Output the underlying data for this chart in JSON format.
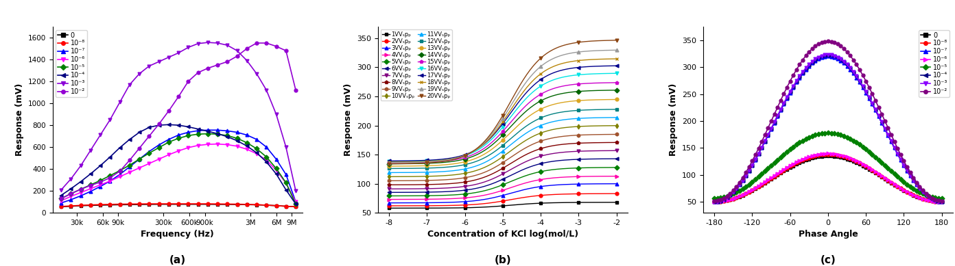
{
  "panel_a": {
    "title": "(a)",
    "xlabel": "Frequency (Hz)",
    "ylabel": "Response (mV)",
    "ylim": [
      0,
      1700
    ],
    "yticks": [
      0,
      200,
      400,
      600,
      800,
      1000,
      1200,
      1400,
      1600
    ],
    "freq_labels": [
      "30k",
      "60k",
      "90k",
      "300k",
      "600k",
      "900k",
      "3M",
      "6M",
      "9M"
    ],
    "freq_log_values": [
      4.477,
      4.778,
      4.954,
      5.477,
      5.778,
      5.954,
      6.477,
      6.778,
      6.954
    ],
    "series": [
      {
        "label": "0",
        "color": "#000000",
        "marker": "s",
        "data": [
          55,
          60,
          65,
          68,
          70,
          72,
          74,
          75,
          76,
          77,
          78,
          78,
          78,
          78,
          78,
          78,
          77,
          77,
          76,
          75,
          73,
          70,
          65,
          60,
          55
        ]
      },
      {
        "label": "10⁻⁸",
        "color": "#ff0000",
        "marker": "o",
        "data": [
          58,
          63,
          68,
          72,
          75,
          77,
          79,
          80,
          81,
          82,
          82,
          82,
          82,
          82,
          82,
          82,
          81,
          80,
          79,
          77,
          74,
          70,
          65,
          60,
          55
        ]
      },
      {
        "label": "10⁻⁷",
        "color": "#0000ff",
        "marker": "^",
        "data": [
          90,
          120,
          155,
          195,
          240,
          290,
          350,
          420,
          490,
          560,
          620,
          670,
          710,
          735,
          750,
          755,
          755,
          748,
          735,
          710,
          670,
          600,
          490,
          350,
          100
        ]
      },
      {
        "label": "10⁻⁶",
        "color": "#ff00ff",
        "marker": "v",
        "data": [
          110,
          150,
          185,
          220,
          255,
          290,
          330,
          370,
          410,
          450,
          490,
          530,
          565,
          595,
          615,
          625,
          628,
          622,
          608,
          580,
          540,
          480,
          390,
          270,
          100
        ]
      },
      {
        "label": "10⁻⁵",
        "color": "#008000",
        "marker": "D",
        "data": [
          130,
          175,
          215,
          255,
          295,
          340,
          385,
          435,
          490,
          545,
          595,
          645,
          680,
          705,
          718,
          722,
          718,
          705,
          680,
          640,
          585,
          510,
          405,
          275,
          80
        ]
      },
      {
        "label": "10⁻⁴",
        "color": "#000080",
        "marker": "<",
        "data": [
          160,
          220,
          285,
          355,
          430,
          510,
          595,
          670,
          735,
          780,
          800,
          805,
          800,
          785,
          765,
          745,
          722,
          695,
          658,
          610,
          548,
          465,
          355,
          210,
          80
        ]
      },
      {
        "label": "10⁻³",
        "color": "#8b00d7",
        "marker": "v",
        "data": [
          210,
          310,
          430,
          570,
          710,
          850,
          1010,
          1170,
          1270,
          1340,
          1380,
          1420,
          1460,
          1510,
          1545,
          1555,
          1550,
          1530,
          1480,
          1390,
          1270,
          1120,
          900,
          600,
          200
        ]
      },
      {
        "label": "10⁻²",
        "color": "#9400d3",
        "marker": "o",
        "data": [
          130,
          175,
          215,
          250,
          280,
          320,
          380,
          480,
          590,
          700,
          810,
          930,
          1060,
          1200,
          1280,
          1320,
          1350,
          1380,
          1430,
          1500,
          1550,
          1550,
          1520,
          1480,
          1120
        ]
      }
    ]
  },
  "panel_b": {
    "title": "(b)",
    "xlabel": "Concentration of KCl log(mol/L)",
    "ylabel": "Response (mV)",
    "ylim": [
      50,
      370
    ],
    "yticks": [
      50,
      100,
      150,
      200,
      250,
      300,
      350
    ],
    "xvals": [
      -8,
      -7,
      -6,
      -5,
      -4,
      -3,
      -2
    ],
    "xticks": [
      -8,
      -7,
      -6,
      -5,
      -4,
      -3,
      -2
    ],
    "series": [
      {
        "label": "1V",
        "color": "#000000",
        "marker": "s",
        "baseline": 58,
        "top": 68,
        "mid": -4.8,
        "k": 2.2
      },
      {
        "label": "2V",
        "color": "#ff0000",
        "marker": "o",
        "baseline": 62,
        "top": 83,
        "mid": -4.8,
        "k": 2.2
      },
      {
        "label": "3V",
        "color": "#0000ff",
        "marker": "^",
        "baseline": 67,
        "top": 100,
        "mid": -4.8,
        "k": 2.2
      },
      {
        "label": "4V",
        "color": "#ff00aa",
        "marker": ">",
        "baseline": 73,
        "top": 113,
        "mid": -4.8,
        "k": 2.2
      },
      {
        "label": "5V",
        "color": "#008000",
        "marker": "D",
        "baseline": 79,
        "top": 128,
        "mid": -4.8,
        "k": 2.2
      },
      {
        "label": "6V",
        "color": "#000080",
        "marker": "<",
        "baseline": 85,
        "top": 143,
        "mid": -4.8,
        "k": 2.2
      },
      {
        "label": "7V",
        "color": "#800080",
        "marker": "v",
        "baseline": 91,
        "top": 157,
        "mid": -4.8,
        "k": 2.2
      },
      {
        "label": "8V",
        "color": "#800000",
        "marker": "p",
        "baseline": 98,
        "top": 171,
        "mid": -4.8,
        "k": 2.2
      },
      {
        "label": "9V",
        "color": "#a0522d",
        "marker": "h",
        "baseline": 105,
        "top": 185,
        "mid": -4.8,
        "k": 2.2
      },
      {
        "label": "10V",
        "color": "#808000",
        "marker": "d",
        "baseline": 112,
        "top": 200,
        "mid": -4.8,
        "k": 2.2
      },
      {
        "label": "11V",
        "color": "#00aaff",
        "marker": "^",
        "baseline": 119,
        "top": 214,
        "mid": -4.8,
        "k": 2.2
      },
      {
        "label": "12V",
        "color": "#008080",
        "marker": "s",
        "baseline": 126,
        "top": 228,
        "mid": -4.8,
        "k": 2.2
      },
      {
        "label": "13V",
        "color": "#daa520",
        "marker": "o",
        "baseline": 130,
        "top": 245,
        "mid": -4.8,
        "k": 2.2
      },
      {
        "label": "14V",
        "color": "#006400",
        "marker": "D",
        "baseline": 134,
        "top": 261,
        "mid": -4.8,
        "k": 2.2
      },
      {
        "label": "15V",
        "color": "#cc00cc",
        "marker": "p",
        "baseline": 136,
        "top": 274,
        "mid": -4.8,
        "k": 2.2
      },
      {
        "label": "16V",
        "color": "#00e5e5",
        "marker": "v",
        "baseline": 138,
        "top": 290,
        "mid": -4.8,
        "k": 2.2
      },
      {
        "label": "17V",
        "color": "#00008b",
        "marker": "<",
        "baseline": 139,
        "top": 303,
        "mid": -4.8,
        "k": 2.2
      },
      {
        "label": "18V",
        "color": "#b8860b",
        "marker": "x",
        "baseline": 137,
        "top": 315,
        "mid": -4.8,
        "k": 2.2
      },
      {
        "label": "19V",
        "color": "#999999",
        "marker": "^",
        "baseline": 136,
        "top": 330,
        "mid": -4.8,
        "k": 2.2
      },
      {
        "label": "20V",
        "color": "#8b4513",
        "marker": "v",
        "baseline": 134,
        "top": 347,
        "mid": -4.8,
        "k": 2.2
      }
    ]
  },
  "panel_c": {
    "title": "(c)",
    "xlabel": "Phase Angle",
    "ylabel": "Response (mV)",
    "ylim": [
      30,
      375
    ],
    "yticks": [
      50,
      100,
      150,
      200,
      250,
      300,
      350
    ],
    "xticks": [
      -180,
      -120,
      -60,
      0,
      60,
      120,
      180
    ],
    "series": [
      {
        "label": "0",
        "color": "#000000",
        "marker": "s",
        "peak": 135,
        "baseline": 50
      },
      {
        "label": "10⁻⁸",
        "color": "#ff0000",
        "marker": "o",
        "peak": 138,
        "baseline": 50
      },
      {
        "label": "10⁻⁷",
        "color": "#0000ff",
        "marker": "^",
        "peak": 320,
        "baseline": 50
      },
      {
        "label": "10⁻⁶",
        "color": "#ff00ff",
        "marker": ">",
        "peak": 140,
        "baseline": 50
      },
      {
        "label": "10⁻⁵",
        "color": "#008000",
        "marker": "D",
        "peak": 178,
        "baseline": 57
      },
      {
        "label": "10⁻⁴",
        "color": "#000080",
        "marker": "<",
        "peak": 322,
        "baseline": 50
      },
      {
        "label": "10⁻³",
        "color": "#8b00ff",
        "marker": "v",
        "peak": 323,
        "baseline": 50
      },
      {
        "label": "10⁻²",
        "color": "#800080",
        "marker": "o",
        "peak": 348,
        "baseline": 52
      }
    ]
  }
}
